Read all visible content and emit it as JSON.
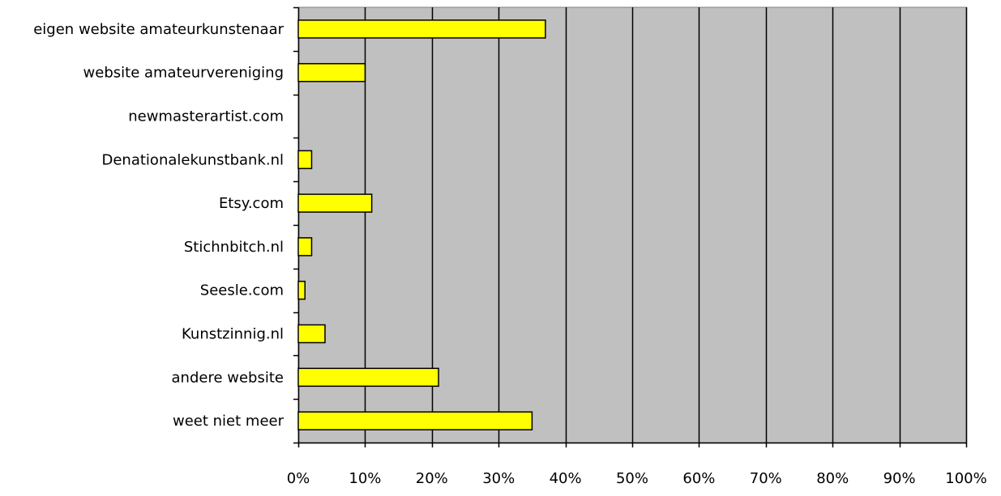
{
  "chart_data": {
    "type": "bar",
    "orientation": "horizontal",
    "categories": [
      "eigen website amateurkunstenaar",
      "website amateurvereniging",
      "newmasterartist.com",
      "Denationalekunstbank.nl",
      "Etsy.com",
      "Stichnbitch.nl",
      "Seesle.com",
      "Kunstzinnig.nl",
      "andere website",
      "weet niet meer"
    ],
    "values": [
      37,
      10,
      0,
      2,
      11,
      2,
      1,
      4,
      21,
      35
    ],
    "xlim": [
      0,
      100
    ],
    "x_ticks": [
      "0%",
      "10%",
      "20%",
      "30%",
      "40%",
      "50%",
      "60%",
      "70%",
      "80%",
      "90%",
      "100%"
    ],
    "title": "",
    "xlabel": "",
    "ylabel": "",
    "grid": "vertical",
    "legend": "none",
    "colors": {
      "bar_fill": "#ffff00",
      "bar_stroke": "#000000",
      "plot_background": "#c0c0c0",
      "gridline": "#000000"
    }
  }
}
